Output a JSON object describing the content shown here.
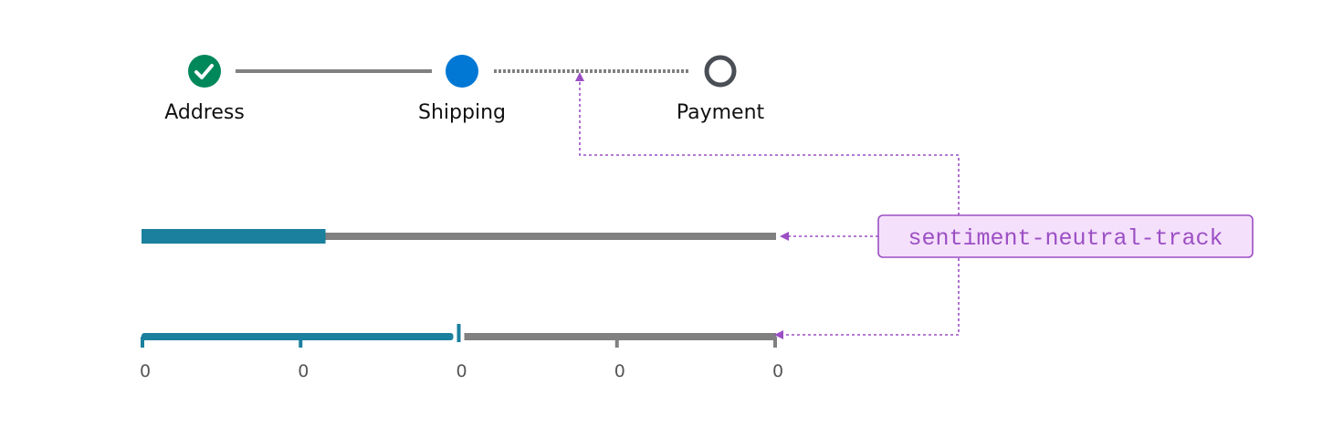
{
  "stepper": {
    "steps": [
      {
        "label": "Address",
        "state": "complete",
        "icon": "check-icon"
      },
      {
        "label": "Shipping",
        "state": "current"
      },
      {
        "label": "Payment",
        "state": "upcoming"
      }
    ]
  },
  "progress": {
    "value_percent": 29
  },
  "slider": {
    "value_percent": 50,
    "tick_labels": [
      "0",
      "0",
      "0",
      "0",
      "0"
    ]
  },
  "callout": {
    "label": "sentiment-neutral-track"
  },
  "colors": {
    "complete": "#00875a",
    "current": "#0078d4",
    "upcoming": "#4a4f55",
    "fill": "#1b809e",
    "track": "#808080",
    "annotation": "#9b4fc4",
    "callout_bg": "#f5e0fb"
  }
}
